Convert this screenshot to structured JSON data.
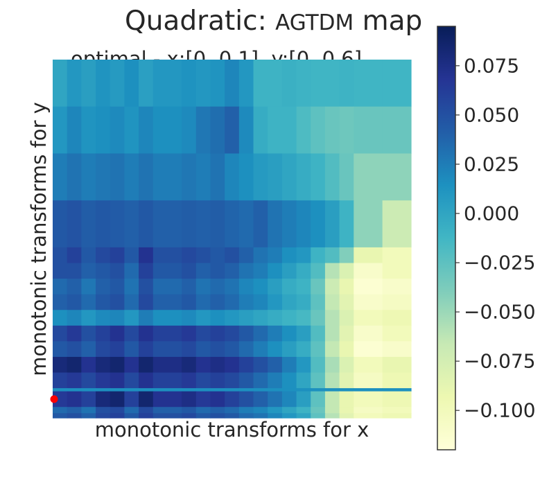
{
  "chart_data": {
    "type": "heatmap",
    "title_prefix": "Quadratic: ",
    "title_smallcaps": "AGTDM",
    "title_suffix": " map",
    "subtitle": "optimal - x:[0.  0.1], y:[0.  0.6]",
    "xlabel": "monotonic transforms for x",
    "ylabel": "monotonic transforms for y",
    "colormap": "YlGnBu",
    "colormap_stops": [
      "#ffffd9",
      "#edf8b1",
      "#c7e9b4",
      "#7fcdbb",
      "#41b6c4",
      "#1d91c0",
      "#225ea8",
      "#253494",
      "#081d58"
    ],
    "vmin": -0.12,
    "vmax": 0.095,
    "colorbar_ticks": [
      0.075,
      0.05,
      0.025,
      0.0,
      -0.025,
      -0.05,
      -0.075,
      -0.1
    ],
    "colorbar_labels": [
      "0.075",
      "0.050",
      "0.025",
      "0.000",
      "−0.025",
      "−0.050",
      "−0.075",
      "−0.100"
    ],
    "optimal_marker_color": "#ff0000",
    "col_bands": [
      1,
      1,
      1,
      1,
      1,
      1,
      1,
      2,
      1,
      1,
      1,
      1,
      1,
      1,
      1,
      1,
      1,
      1,
      1,
      1,
      2,
      2
    ],
    "values": [
      [
        0.0,
        0.01,
        0.005,
        0.012,
        0.008,
        0.015,
        0.004,
        0.01,
        0.013,
        0.01,
        0.012,
        0.02,
        0.01,
        -0.01,
        -0.01,
        -0.008,
        -0.01,
        -0.012,
        -0.012,
        -0.01,
        -0.012,
        -0.012
      ],
      [
        0.01,
        0.02,
        0.012,
        0.015,
        0.018,
        0.012,
        0.02,
        0.015,
        0.018,
        0.028,
        0.033,
        0.04,
        0.018,
        -0.005,
        -0.01,
        -0.01,
        -0.018,
        -0.025,
        -0.03,
        -0.032,
        -0.03,
        -0.03
      ],
      [
        0.025,
        0.03,
        0.025,
        0.028,
        0.03,
        0.025,
        0.03,
        0.025,
        0.028,
        0.025,
        0.03,
        0.02,
        0.015,
        0.008,
        0.005,
        0.0,
        -0.005,
        -0.01,
        -0.02,
        -0.03,
        -0.045,
        -0.045
      ],
      [
        0.045,
        0.048,
        0.042,
        0.045,
        0.043,
        0.04,
        0.045,
        0.04,
        0.042,
        0.04,
        0.042,
        0.038,
        0.035,
        0.04,
        0.03,
        0.025,
        0.02,
        0.015,
        0.005,
        -0.01,
        -0.045,
        -0.07
      ],
      [
        0.05,
        0.06,
        0.045,
        0.055,
        0.06,
        0.045,
        0.07,
        0.05,
        0.055,
        0.05,
        0.045,
        0.05,
        0.04,
        0.03,
        0.025,
        0.015,
        0.01,
        -0.01,
        -0.02,
        -0.04,
        -0.09,
        -0.1
      ],
      [
        0.05,
        0.05,
        0.04,
        0.045,
        0.05,
        0.035,
        0.06,
        0.045,
        0.05,
        0.04,
        0.045,
        0.04,
        0.03,
        0.025,
        0.015,
        0.005,
        -0.005,
        -0.02,
        -0.06,
        -0.08,
        -0.11,
        -0.1
      ],
      [
        0.035,
        0.04,
        0.028,
        0.04,
        0.045,
        0.03,
        0.05,
        0.035,
        0.04,
        0.03,
        0.035,
        0.03,
        0.02,
        0.015,
        0.005,
        -0.005,
        -0.01,
        -0.03,
        -0.07,
        -0.09,
        -0.115,
        -0.11
      ],
      [
        0.04,
        0.045,
        0.035,
        0.045,
        0.05,
        0.035,
        0.055,
        0.04,
        0.045,
        0.035,
        0.04,
        0.035,
        0.025,
        0.02,
        0.01,
        0.0,
        -0.005,
        -0.025,
        -0.065,
        -0.085,
        -0.11,
        -0.105
      ],
      [
        0.015,
        0.02,
        0.01,
        0.018,
        0.02,
        0.01,
        0.025,
        0.015,
        0.018,
        0.01,
        0.015,
        0.01,
        0.005,
        0.0,
        -0.005,
        -0.01,
        -0.015,
        -0.03,
        -0.06,
        -0.08,
        -0.1,
        -0.095
      ],
      [
        0.055,
        0.065,
        0.05,
        0.06,
        0.07,
        0.055,
        0.07,
        0.06,
        0.065,
        0.055,
        0.06,
        0.055,
        0.045,
        0.035,
        0.025,
        0.015,
        0.005,
        -0.02,
        -0.06,
        -0.085,
        -0.11,
        -0.1
      ],
      [
        0.045,
        0.05,
        0.04,
        0.055,
        0.06,
        0.045,
        0.06,
        0.05,
        0.055,
        0.045,
        0.05,
        0.045,
        0.035,
        0.025,
        0.015,
        0.005,
        -0.005,
        -0.025,
        -0.065,
        -0.09,
        -0.115,
        -0.11
      ],
      [
        0.08,
        0.085,
        0.07,
        0.08,
        0.085,
        0.07,
        0.085,
        0.075,
        0.08,
        0.07,
        0.075,
        0.07,
        0.06,
        0.05,
        0.04,
        0.025,
        0.01,
        -0.02,
        -0.055,
        -0.08,
        -0.1,
        -0.09
      ],
      [
        0.06,
        0.065,
        0.055,
        0.065,
        0.07,
        0.055,
        0.07,
        0.06,
        0.065,
        0.055,
        0.06,
        0.055,
        0.045,
        0.035,
        0.025,
        0.015,
        0.0,
        -0.025,
        -0.06,
        -0.085,
        -0.105,
        -0.095
      ],
      [
        0.015,
        0.015,
        0.015,
        0.015,
        0.015,
        0.015,
        0.015,
        0.015,
        0.015,
        0.015,
        0.015,
        0.015,
        0.015,
        0.015,
        0.015,
        0.015,
        0.015,
        0.015,
        0.015,
        0.015,
        0.015,
        0.015
      ],
      [
        0.065,
        0.07,
        0.06,
        0.08,
        0.085,
        0.06,
        0.085,
        0.07,
        0.075,
        0.065,
        0.07,
        0.06,
        0.05,
        0.04,
        0.03,
        0.02,
        0.005,
        -0.025,
        -0.065,
        -0.09,
        -0.1,
        -0.095
      ],
      [
        0.035,
        0.04,
        0.03,
        0.05,
        0.055,
        0.035,
        0.055,
        0.04,
        0.045,
        0.035,
        0.04,
        0.035,
        0.025,
        0.02,
        0.01,
        0.0,
        -0.01,
        -0.03,
        -0.065,
        -0.09,
        -0.105,
        -0.1
      ],
      [
        0.045,
        0.05,
        0.04,
        0.055,
        0.06,
        0.045,
        0.06,
        0.05,
        0.055,
        0.045,
        0.05,
        0.045,
        0.035,
        0.03,
        0.02,
        0.01,
        0.0,
        -0.025,
        -0.06,
        -0.085,
        -0.1,
        -0.095
      ]
    ],
    "row_bands": [
      3,
      3,
      3,
      3,
      1,
      1,
      1,
      1,
      1,
      1,
      1,
      1,
      1,
      0.2,
      1,
      0.4,
      0.3
    ],
    "optimal_cell": {
      "row": 14,
      "col": 0
    }
  }
}
